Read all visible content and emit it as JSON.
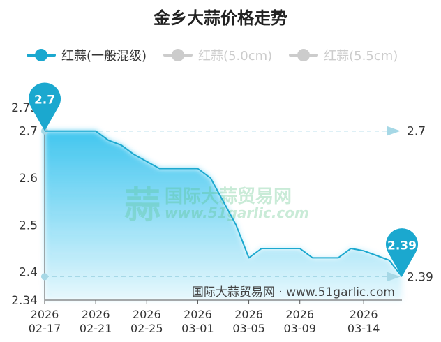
{
  "title": "金乡大蒜价格走势",
  "watermark": {
    "mark": "蒜",
    "cn": "国际大蒜贸易网",
    "en": "www.51garlic.com"
  },
  "credit": "国际大蒜贸易网 · www.51garlic.com",
  "colors": {
    "active": "#1ba8cf",
    "inactive": "#cccccc",
    "area": "#38c3ee",
    "markLine": "#a6d8e6",
    "watermark": "#4dbd7a",
    "axis": "#555555",
    "text": "#333333"
  },
  "chart_data": {
    "type": "area",
    "title": "金乡大蒜价格走势",
    "ylim": [
      2.34,
      2.75
    ],
    "yticks": [
      "2.34",
      "2.4",
      "2.5",
      "2.6",
      "2.7",
      "2.75"
    ],
    "xticks": [
      {
        "x": "2026-02-17",
        "year": "2026",
        "md": "02-17"
      },
      {
        "x": "2026-02-21",
        "year": "2026",
        "md": "02-21"
      },
      {
        "x": "2026-02-25",
        "year": "2026",
        "md": "02-25"
      },
      {
        "x": "2026-03-01",
        "year": "2026",
        "md": "03-01"
      },
      {
        "x": "2026-03-05",
        "year": "2026",
        "md": "03-05"
      },
      {
        "x": "2026-03-09",
        "year": "2026",
        "md": "03-09"
      },
      {
        "x": "2026-03-14",
        "year": "2026",
        "md": "03-14"
      }
    ],
    "legend": "top-left",
    "series": [
      {
        "name": "红蒜(一般混级)",
        "active": true,
        "data": [
          [
            "2026-02-17",
            2.7
          ],
          [
            "2026-02-18",
            2.7
          ],
          [
            "2026-02-19",
            2.7
          ],
          [
            "2026-02-20",
            2.7
          ],
          [
            "2026-02-21",
            2.7
          ],
          [
            "2026-02-22",
            2.68
          ],
          [
            "2026-02-23",
            2.67
          ],
          [
            "2026-02-24",
            2.65
          ],
          [
            "2026-02-25",
            2.635
          ],
          [
            "2026-02-26",
            2.62
          ],
          [
            "2026-02-27",
            2.62
          ],
          [
            "2026-02-28",
            2.62
          ],
          [
            "2026-03-01",
            2.62
          ],
          [
            "2026-03-02",
            2.6
          ],
          [
            "2026-03-03",
            2.55
          ],
          [
            "2026-03-04",
            2.5
          ],
          [
            "2026-03-05",
            2.43
          ],
          [
            "2026-03-06",
            2.45
          ],
          [
            "2026-03-07",
            2.45
          ],
          [
            "2026-03-08",
            2.45
          ],
          [
            "2026-03-09",
            2.45
          ],
          [
            "2026-03-10",
            2.43
          ],
          [
            "2026-03-11",
            2.43
          ],
          [
            "2026-03-12",
            2.43
          ],
          [
            "2026-03-13",
            2.45
          ],
          [
            "2026-03-14",
            2.445
          ],
          [
            "2026-03-15",
            2.435
          ],
          [
            "2026-03-16",
            2.425
          ],
          [
            "2026-03-17",
            2.39
          ]
        ]
      },
      {
        "name": "红蒜(5.0cm)",
        "active": false
      },
      {
        "name": "红蒜(5.5cm)",
        "active": false
      }
    ],
    "markPoints": [
      {
        "x": "2026-02-17",
        "value": "2.7"
      },
      {
        "x": "2026-03-17",
        "value": "2.39"
      }
    ],
    "markLines": [
      {
        "value": 2.7,
        "label": "2.7"
      },
      {
        "value": 2.39,
        "label": "2.39"
      }
    ]
  }
}
